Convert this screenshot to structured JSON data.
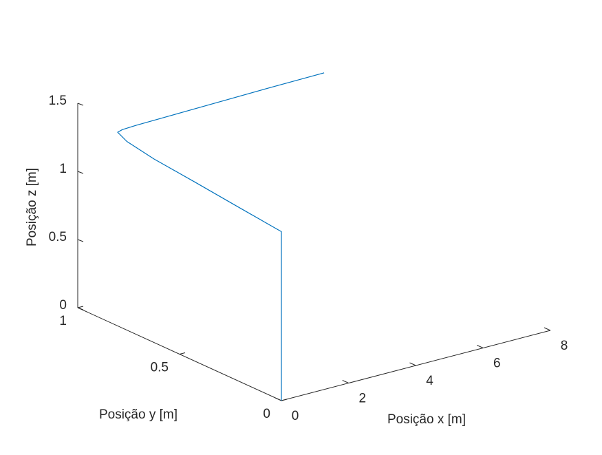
{
  "chart_data": {
    "type": "line3d",
    "xlabel": "Posição x [m]",
    "ylabel": "Posição y [m]",
    "zlabel": "Posição z [m]",
    "xlim": [
      0,
      8
    ],
    "ylim": [
      0,
      1
    ],
    "zlim": [
      0,
      1.5
    ],
    "xticks": [
      0,
      2,
      4,
      6,
      8
    ],
    "yticks": [
      0,
      0.5,
      1
    ],
    "zticks": [
      0,
      0.5,
      1,
      1.5
    ],
    "series": [
      {
        "color": "#0072bd",
        "x": [
          0,
          0,
          0.02,
          0.08,
          0.15,
          0.25,
          0.4,
          0.6,
          1.0,
          2,
          3,
          4,
          5,
          6.6
        ],
        "y": [
          0,
          0,
          0.2,
          0.44,
          0.65,
          0.8,
          0.87,
          0.88,
          0.88,
          0.88,
          0.88,
          0.88,
          0.88,
          0.88
        ],
        "z": [
          0,
          1.24,
          1.27,
          1.3,
          1.32,
          1.34,
          1.35,
          1.35,
          1.355,
          1.36,
          1.365,
          1.37,
          1.375,
          1.38
        ]
      }
    ]
  }
}
